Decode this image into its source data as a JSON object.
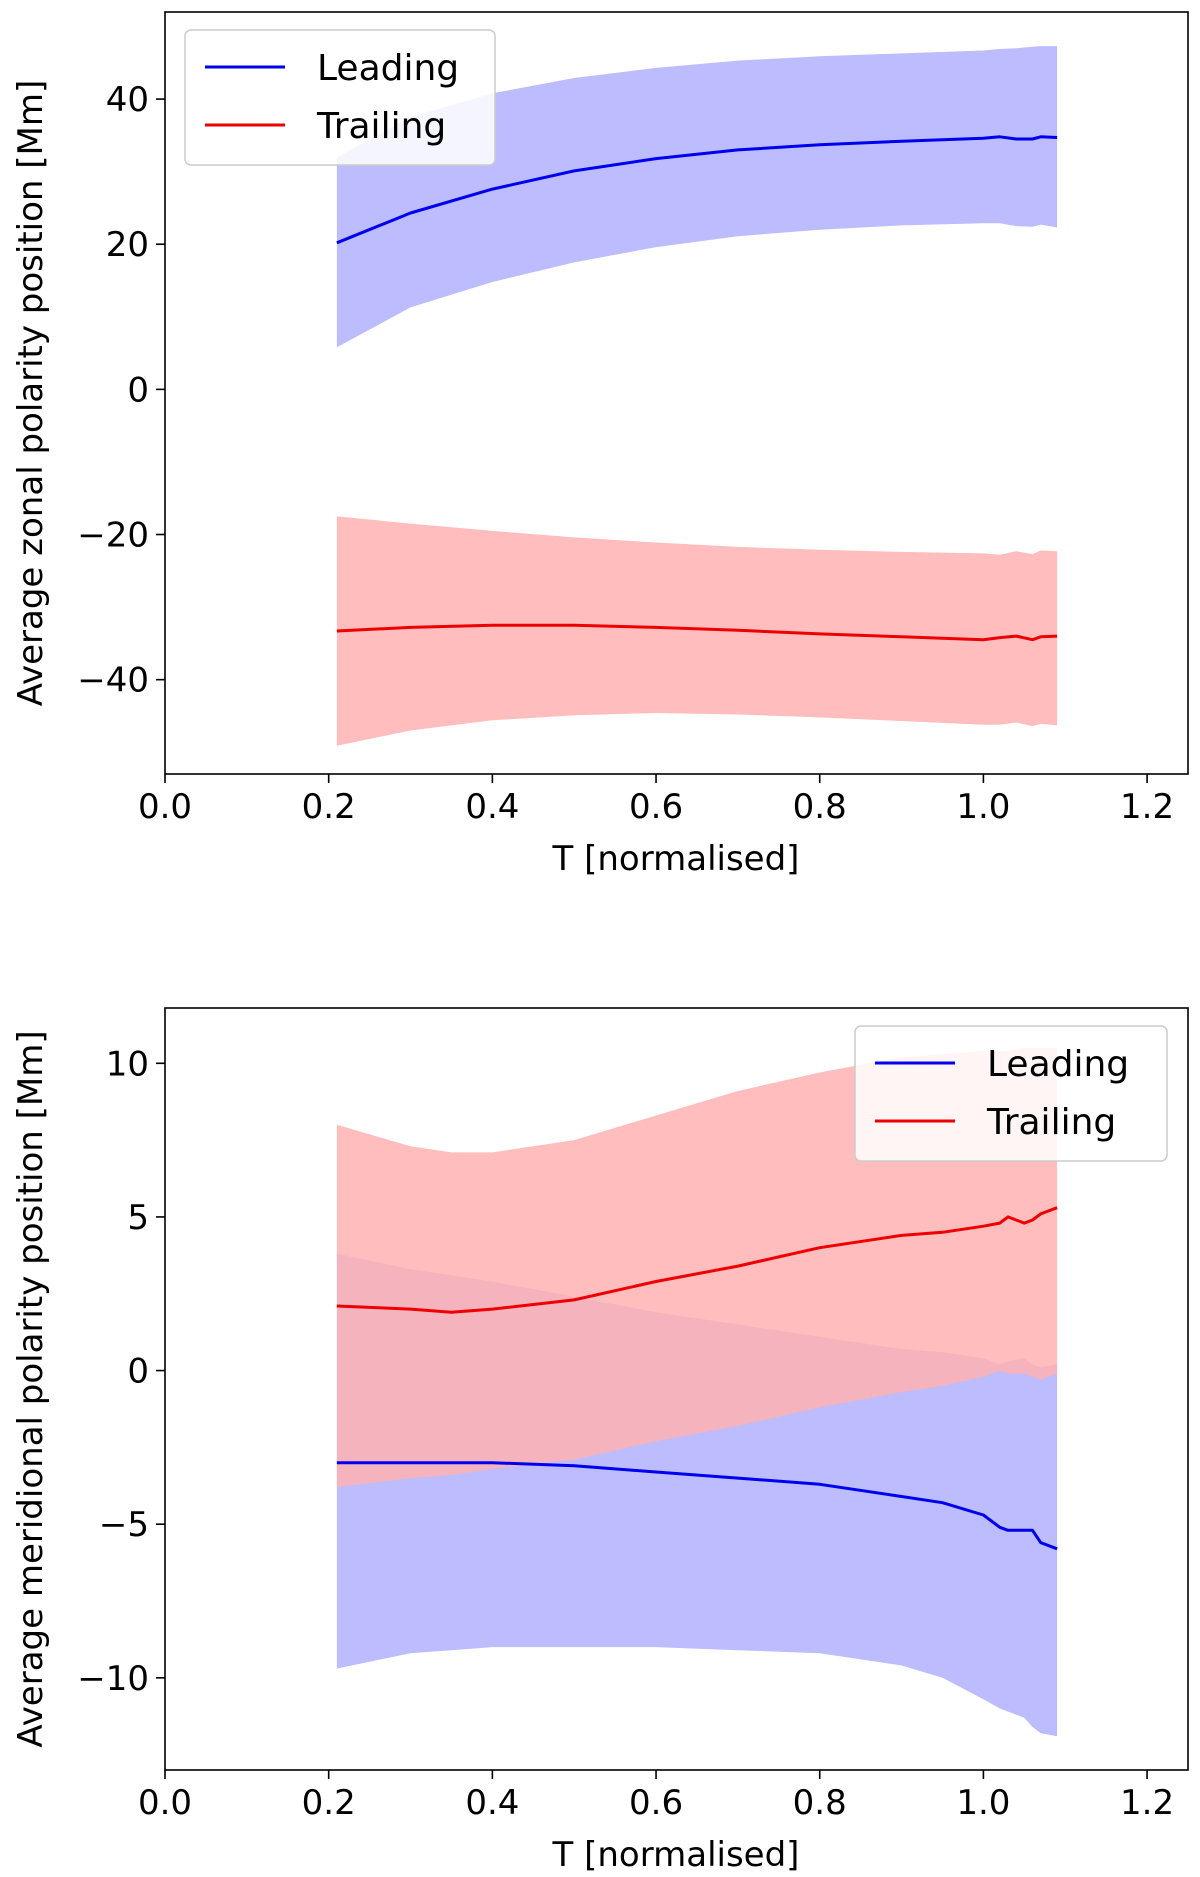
{
  "chart_data": [
    {
      "type": "line",
      "id": "zonal",
      "title": "",
      "xlabel": "T [normalised]",
      "ylabel": "Average zonal polarity position [Mm]",
      "xlim": [
        0.0,
        1.25
      ],
      "ylim": [
        -53,
        52
      ],
      "xticks": [
        0.0,
        0.2,
        0.4,
        0.6,
        0.8,
        1.0,
        1.2
      ],
      "xtick_labels": [
        "0.0",
        "0.2",
        "0.4",
        "0.6",
        "0.8",
        "1.0",
        "1.2"
      ],
      "yticks": [
        -40,
        -20,
        0,
        20,
        40
      ],
      "ytick_labels": [
        "−40",
        "−20",
        "0",
        "20",
        "40"
      ],
      "legend": {
        "placement": "top-left",
        "entries": [
          "Leading",
          "Trailing"
        ]
      },
      "x": [
        0.21,
        0.3,
        0.4,
        0.5,
        0.6,
        0.7,
        0.8,
        0.9,
        1.0,
        1.02,
        1.04,
        1.06,
        1.07,
        1.09
      ],
      "series": [
        {
          "name": "Leading",
          "color": "#0000ee",
          "fill": "#b0b0ff",
          "mean": [
            20.2,
            24.3,
            27.6,
            30.1,
            31.8,
            33.0,
            33.7,
            34.2,
            34.6,
            34.8,
            34.5,
            34.5,
            34.8,
            34.7
          ],
          "upper": [
            32.0,
            37.5,
            40.8,
            42.9,
            44.3,
            45.3,
            45.9,
            46.3,
            46.7,
            46.9,
            47.0,
            47.2,
            47.3,
            47.3
          ],
          "lower": [
            5.8,
            11.3,
            14.8,
            17.5,
            19.6,
            21.1,
            22.0,
            22.6,
            22.9,
            22.9,
            22.5,
            22.4,
            22.7,
            22.3
          ]
        },
        {
          "name": "Trailing",
          "color": "#ee0000",
          "fill": "#ffb2b2",
          "mean": [
            -33.3,
            -32.8,
            -32.5,
            -32.5,
            -32.8,
            -33.2,
            -33.7,
            -34.1,
            -34.5,
            -34.2,
            -34.0,
            -34.5,
            -34.1,
            -34.0
          ],
          "upper": [
            -17.5,
            -18.5,
            -19.5,
            -20.4,
            -21.1,
            -21.7,
            -22.1,
            -22.4,
            -22.6,
            -22.8,
            -22.3,
            -22.7,
            -22.2,
            -22.3
          ],
          "lower": [
            -49.1,
            -47.0,
            -45.6,
            -44.9,
            -44.6,
            -44.8,
            -45.2,
            -45.7,
            -46.2,
            -46.2,
            -45.9,
            -46.4,
            -46.1,
            -46.3
          ]
        }
      ]
    },
    {
      "type": "line",
      "id": "meridional",
      "title": "",
      "xlabel": "T [normalised]",
      "ylabel": "Average meridional polarity position [Mm]",
      "xlim": [
        0.0,
        1.25
      ],
      "ylim": [
        -13,
        11.8
      ],
      "xticks": [
        0.0,
        0.2,
        0.4,
        0.6,
        0.8,
        1.0,
        1.2
      ],
      "xtick_labels": [
        "0.0",
        "0.2",
        "0.4",
        "0.6",
        "0.8",
        "1.0",
        "1.2"
      ],
      "yticks": [
        -10,
        -5,
        0,
        5,
        10
      ],
      "ytick_labels": [
        "−10",
        "−5",
        "0",
        "5",
        "10"
      ],
      "legend": {
        "placement": "top-right",
        "entries": [
          "Leading",
          "Trailing"
        ]
      },
      "x": [
        0.21,
        0.3,
        0.35,
        0.4,
        0.5,
        0.6,
        0.7,
        0.8,
        0.9,
        0.95,
        1.0,
        1.02,
        1.03,
        1.05,
        1.06,
        1.07,
        1.09
      ],
      "series": [
        {
          "name": "Leading",
          "color": "#0000ee",
          "fill": "#b0b0ff",
          "mean": [
            -3.0,
            -3.0,
            -3.0,
            -3.0,
            -3.1,
            -3.3,
            -3.5,
            -3.7,
            -4.1,
            -4.3,
            -4.7,
            -5.1,
            -5.2,
            -5.2,
            -5.2,
            -5.6,
            -5.8
          ],
          "upper": [
            3.8,
            3.3,
            3.1,
            2.9,
            2.4,
            1.9,
            1.5,
            1.1,
            0.7,
            0.6,
            0.4,
            0.2,
            0.3,
            0.4,
            0.2,
            0.1,
            0.2
          ],
          "lower": [
            -9.7,
            -9.2,
            -9.1,
            -9.0,
            -9.0,
            -9.0,
            -9.1,
            -9.2,
            -9.6,
            -10.0,
            -10.7,
            -11.0,
            -11.1,
            -11.3,
            -11.6,
            -11.8,
            -11.9
          ]
        },
        {
          "name": "Trailing",
          "color": "#ee0000",
          "fill": "#ffb2b2",
          "mean": [
            2.1,
            2.0,
            1.9,
            2.0,
            2.3,
            2.9,
            3.4,
            4.0,
            4.4,
            4.5,
            4.7,
            4.8,
            5.0,
            4.8,
            4.9,
            5.1,
            5.3
          ],
          "upper": [
            8.0,
            7.3,
            7.1,
            7.1,
            7.5,
            8.3,
            9.1,
            9.7,
            10.2,
            10.3,
            10.4,
            10.4,
            10.4,
            10.5,
            10.5,
            10.5,
            10.5
          ],
          "lower": [
            -3.8,
            -3.5,
            -3.4,
            -3.2,
            -2.9,
            -2.3,
            -1.8,
            -1.2,
            -0.7,
            -0.5,
            -0.2,
            0.0,
            -0.1,
            -0.1,
            -0.2,
            -0.3,
            -0.1
          ]
        }
      ]
    }
  ]
}
